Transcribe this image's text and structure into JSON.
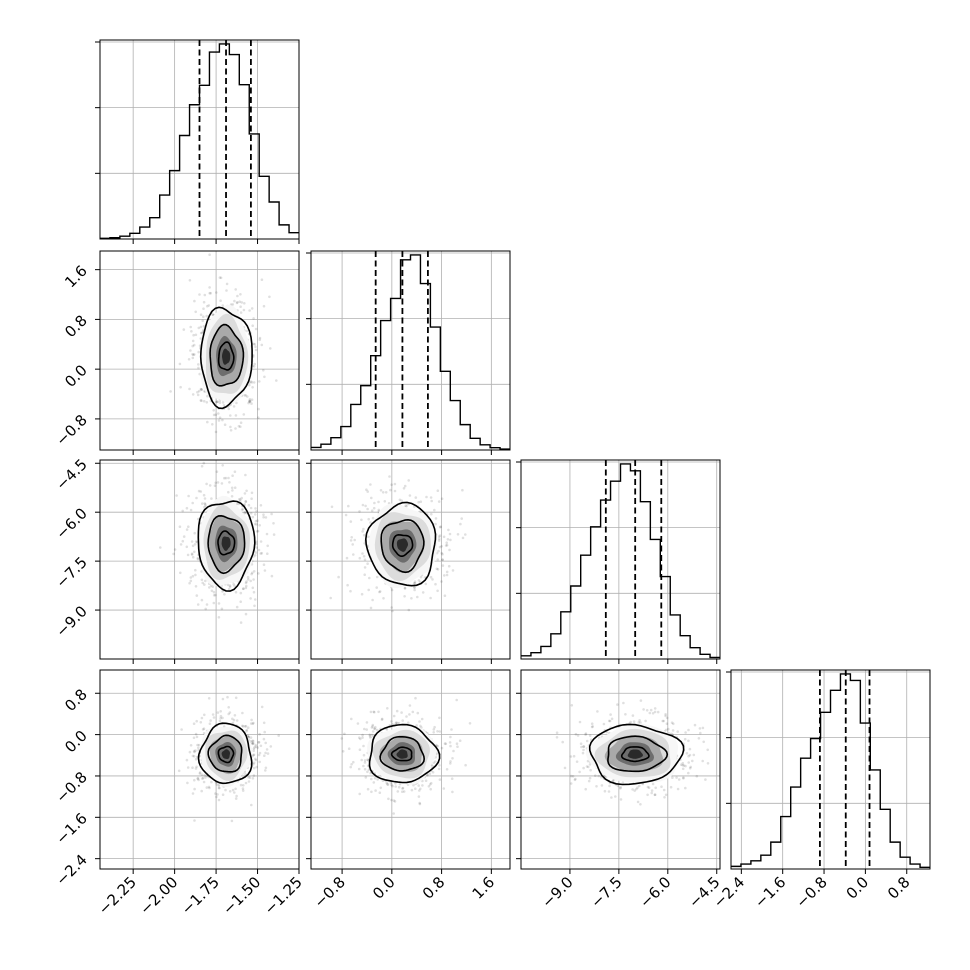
{
  "chart_data": {
    "type": "corner",
    "grid": true,
    "parameters": [
      {
        "key": "p1",
        "range": [
          -2.45,
          -1.25
        ],
        "ticks": [
          -2.25,
          -2.0,
          -1.75,
          -1.5,
          -1.25
        ],
        "tick_labels": [
          "−2.25",
          "−2.00",
          "−1.75",
          "−1.50",
          "−1.25"
        ],
        "quantiles": [
          -1.85,
          -1.69,
          -1.54
        ]
      },
      {
        "key": "p2",
        "range": [
          -1.3,
          1.9
        ],
        "ticks": [
          -0.8,
          0.0,
          0.8,
          1.6
        ],
        "tick_labels": [
          "−0.8",
          "0.0",
          "0.8",
          "1.6"
        ],
        "quantiles": [
          -0.26,
          0.17,
          0.58
        ]
      },
      {
        "key": "p3",
        "range": [
          -10.5,
          -4.4
        ],
        "ticks": [
          -9.0,
          -7.5,
          -6.0,
          -4.5
        ],
        "tick_labels": [
          "−9.0",
          "−7.5",
          "−6.0",
          "−4.5"
        ],
        "quantiles": [
          -7.9,
          -7.0,
          -6.2
        ]
      },
      {
        "key": "p4",
        "range": [
          -2.6,
          1.25
        ],
        "ticks": [
          -2.4,
          -1.6,
          -0.8,
          0.0,
          0.8
        ],
        "tick_labels": [
          "−2.4",
          "−1.6",
          "−0.8",
          "0.0",
          "0.8"
        ],
        "quantiles": [
          -0.88,
          -0.38,
          0.08
        ]
      }
    ],
    "histograms": [
      {
        "param": "p1",
        "bin_edges": [
          -2.45,
          -2.39,
          -2.33,
          -2.27,
          -2.21,
          -2.15,
          -2.09,
          -2.03,
          -1.97,
          -1.91,
          -1.85,
          -1.79,
          -1.73,
          -1.67,
          -1.61,
          -1.55,
          -1.49,
          -1.43,
          -1.37,
          -1.31,
          -1.25
        ],
        "counts": [
          2,
          4,
          9,
          18,
          38,
          68,
          140,
          218,
          330,
          428,
          490,
          596,
          622,
          588,
          492,
          335,
          200,
          118,
          45,
          20
        ]
      },
      {
        "param": "p2",
        "bin_edges": [
          -1.3,
          -1.14,
          -0.98,
          -0.82,
          -0.66,
          -0.5,
          -0.34,
          -0.18,
          -0.02,
          0.14,
          0.3,
          0.46,
          0.62,
          0.78,
          0.94,
          1.1,
          1.26,
          1.42,
          1.58,
          1.74,
          1.9
        ],
        "counts": [
          8,
          18,
          38,
          72,
          140,
          198,
          290,
          398,
          466,
          585,
          600,
          512,
          378,
          242,
          152,
          78,
          36,
          16,
          7,
          3
        ]
      },
      {
        "param": "p3",
        "bin_edges": [
          -10.5,
          -10.195,
          -9.89,
          -9.585,
          -9.28,
          -8.975,
          -8.67,
          -8.365,
          -8.06,
          -7.755,
          -7.45,
          -7.145,
          -6.84,
          -6.535,
          -6.23,
          -5.925,
          -5.62,
          -5.315,
          -5.01,
          -4.705,
          -4.4
        ],
        "counts": [
          10,
          20,
          40,
          80,
          150,
          232,
          330,
          420,
          505,
          565,
          620,
          598,
          500,
          380,
          262,
          140,
          74,
          36,
          15,
          5
        ]
      },
      {
        "param": "p4",
        "bin_edges": [
          -2.6,
          -2.4075,
          -2.215,
          -2.0225,
          -1.83,
          -1.6375,
          -1.445,
          -1.2525,
          -1.06,
          -0.8675,
          -0.675,
          -0.4825,
          -0.29,
          -0.0975,
          0.095,
          0.2875,
          0.48,
          0.6725,
          0.865,
          1.0575,
          1.25
        ],
        "counts": [
          8,
          15,
          25,
          42,
          82,
          160,
          250,
          338,
          398,
          478,
          545,
          595,
          575,
          445,
          302,
          182,
          82,
          36,
          15,
          5
        ]
      }
    ],
    "pairs": [
      {
        "x": "p1",
        "y": "p2",
        "center": [
          -1.69,
          0.2
        ],
        "levels_radius": [
          [
            0.045,
            0.22
          ],
          [
            0.1,
            0.48
          ],
          [
            0.155,
            0.78
          ]
        ]
      },
      {
        "x": "p1",
        "y": "p3",
        "center": [
          -1.69,
          -6.95
        ],
        "levels_radius": [
          [
            0.05,
            0.35
          ],
          [
            0.11,
            0.85
          ],
          [
            0.17,
            1.35
          ]
        ]
      },
      {
        "x": "p2",
        "y": "p3",
        "center": [
          0.17,
          -7.0
        ],
        "levels_radius": [
          [
            0.16,
            0.32
          ],
          [
            0.34,
            0.78
          ],
          [
            0.55,
            1.25
          ]
        ]
      },
      {
        "x": "p1",
        "y": "p4",
        "center": [
          -1.69,
          -0.38
        ],
        "levels_radius": [
          [
            0.045,
            0.15
          ],
          [
            0.1,
            0.35
          ],
          [
            0.155,
            0.58
          ]
        ]
      },
      {
        "x": "p2",
        "y": "p4",
        "center": [
          0.17,
          -0.38
        ],
        "levels_radius": [
          [
            0.16,
            0.13
          ],
          [
            0.34,
            0.33
          ],
          [
            0.55,
            0.56
          ]
        ]
      },
      {
        "x": "p3",
        "y": "p4",
        "center": [
          -7.0,
          -0.38
        ],
        "levels_radius": [
          [
            0.4,
            0.14
          ],
          [
            0.9,
            0.34
          ],
          [
            1.4,
            0.57
          ]
        ]
      }
    ]
  }
}
